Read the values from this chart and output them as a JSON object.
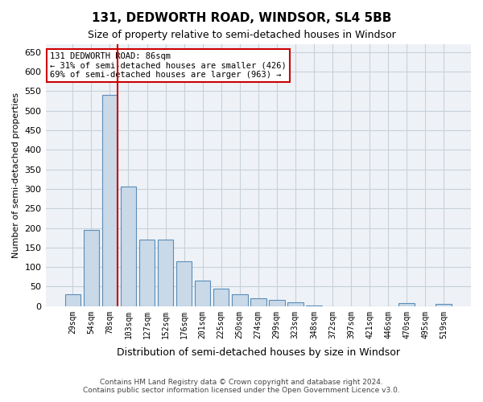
{
  "title": "131, DEDWORTH ROAD, WINDSOR, SL4 5BB",
  "subtitle": "Size of property relative to semi-detached houses in Windsor",
  "xlabel": "Distribution of semi-detached houses by size in Windsor",
  "ylabel": "Number of semi-detached properties",
  "property_size": 86,
  "property_label": "131 DEDWORTH ROAD: 86sqm",
  "pct_smaller": 31,
  "count_smaller": 426,
  "pct_larger": 69,
  "count_larger": 963,
  "annotation_line1": "131 DEDWORTH ROAD: 86sqm",
  "annotation_line2": "← 31% of semi-detached houses are smaller (426)",
  "annotation_line3": "69% of semi-detached houses are larger (963) →",
  "categories": [
    "29sqm",
    "54sqm",
    "78sqm",
    "103sqm",
    "127sqm",
    "152sqm",
    "176sqm",
    "201sqm",
    "225sqm",
    "250sqm",
    "274sqm",
    "299sqm",
    "323sqm",
    "348sqm",
    "372sqm",
    "397sqm",
    "421sqm",
    "446sqm",
    "470sqm",
    "495sqm",
    "519sqm"
  ],
  "values": [
    30,
    195,
    540,
    305,
    170,
    170,
    115,
    65,
    45,
    30,
    20,
    15,
    10,
    2,
    0,
    0,
    0,
    0,
    8,
    0,
    5
  ],
  "bar_color": "#c9d9e8",
  "bar_edge_color": "#5b8db8",
  "vline_x_index": 2,
  "vline_color": "#cc0000",
  "box_color": "#cc0000",
  "ylim": [
    0,
    670
  ],
  "yticks": [
    0,
    50,
    100,
    150,
    200,
    250,
    300,
    350,
    400,
    450,
    500,
    550,
    600,
    650
  ],
  "background_color": "#ffffff",
  "grid_color": "#c8d0d8",
  "footer_line1": "Contains HM Land Registry data © Crown copyright and database right 2024.",
  "footer_line2": "Contains public sector information licensed under the Open Government Licence v3.0."
}
